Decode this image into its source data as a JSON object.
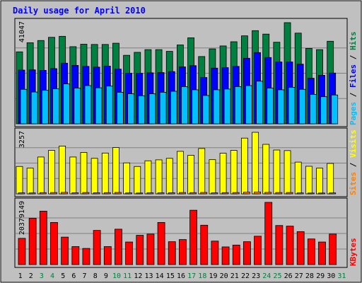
{
  "chart_data": {
    "type": "bar",
    "title": "Daily usage for April 2010",
    "categories": [
      "1",
      "2",
      "3",
      "4",
      "5",
      "6",
      "7",
      "8",
      "9",
      "10",
      "11",
      "12",
      "13",
      "14",
      "15",
      "16",
      "17",
      "18",
      "19",
      "20",
      "21",
      "22",
      "23",
      "24",
      "25",
      "26",
      "27",
      "28",
      "29",
      "30",
      "31"
    ],
    "weekend_days": [
      "3",
      "4",
      "10",
      "11",
      "17",
      "18",
      "24",
      "25",
      "31"
    ],
    "panels": [
      {
        "name": "hits-files-pages",
        "max_label": "41047",
        "ymax": 41047,
        "right_label_parts": [
          {
            "text": "Pages",
            "color": "#00c0ff"
          },
          {
            "text": " / ",
            "color": "#000000"
          },
          {
            "text": "Files",
            "color": "#0000ff"
          },
          {
            "text": " / ",
            "color": "#000000"
          },
          {
            "text": "Hits",
            "color": "#008040"
          }
        ],
        "series": [
          {
            "name": "Hits",
            "color": "#008040",
            "values": [
              29200,
              32900,
              33800,
              35100,
              35500,
              31300,
              32300,
              32200,
              32200,
              32700,
              27800,
              29000,
              30100,
              30100,
              29400,
              32000,
              34900,
              27300,
              30400,
              31600,
              33300,
              35700,
              37800,
              36400,
              33100,
              41047,
              36800,
              30600,
              30100,
              33500,
              0
            ]
          },
          {
            "name": "Files",
            "color": "#0000ff",
            "values": [
              21800,
              21900,
              21700,
              22400,
              24600,
              23700,
              23300,
              23000,
              23400,
              22200,
              20500,
              20500,
              20700,
              20800,
              21200,
              23100,
              23600,
              18800,
              22600,
              22800,
              23300,
              26600,
              28900,
              26900,
              25100,
              25100,
              24200,
              18500,
              19700,
              20600,
              0
            ]
          },
          {
            "name": "Pages",
            "color": "#00c0ff",
            "values": [
              14000,
              12900,
              13600,
              14200,
              16200,
              14500,
              15500,
              14600,
              15300,
              12800,
              12200,
              11400,
              12200,
              12800,
              13200,
              15100,
              13800,
              11500,
              13800,
              14100,
              15100,
              15500,
              17300,
              14500,
              13800,
              14800,
              14000,
              11900,
              11000,
              11700,
              0
            ]
          }
        ]
      },
      {
        "name": "visits-sites",
        "max_label": "3257",
        "ymax": 3257,
        "right_label_parts": [
          {
            "text": "Sites",
            "color": "#ff8000"
          },
          {
            "text": " / ",
            "color": "#000000"
          },
          {
            "text": "Visits",
            "color": "#ffff00"
          }
        ],
        "series": [
          {
            "name": "Visits",
            "color": "#ffff00",
            "values": [
              1450,
              1360,
              1950,
              2300,
              2530,
              1950,
              2190,
              1880,
              2160,
              2450,
              1640,
              1450,
              1750,
              1800,
              1880,
              2250,
              2040,
              2400,
              1810,
              2150,
              2300,
              2950,
              3257,
              2620,
              2320,
              2290,
              1680,
              1460,
              1360,
              1610,
              0
            ]
          },
          {
            "name": "Sites",
            "color": "#ff8000",
            "values": [
              55,
              50,
              65,
              70,
              80,
              60,
              70,
              60,
              65,
              75,
              50,
              45,
              55,
              55,
              60,
              70,
              65,
              75,
              55,
              65,
              70,
              90,
              100,
              80,
              70,
              70,
              50,
              45,
              45,
              50,
              0
            ]
          }
        ]
      },
      {
        "name": "kbytes",
        "max_label": "20379149",
        "ymax": 20379149,
        "right_label_parts": [
          {
            "text": "KBytes",
            "color": "#ff0000"
          }
        ],
        "series": [
          {
            "name": "KBytes",
            "color": "#ff0000",
            "values": [
              8600,
              15200,
              17500,
              13800,
              9000,
              5900,
              5300,
              11200,
              5900,
              11600,
              7400,
              9600,
              10000,
              13800,
              7500,
              8200,
              17800,
              12900,
              7700,
              5800,
              6400,
              7500,
              9300,
              20379,
              12800,
              12600,
              10800,
              8400,
              7400,
              10000,
              0
            ]
          }
        ]
      }
    ]
  }
}
